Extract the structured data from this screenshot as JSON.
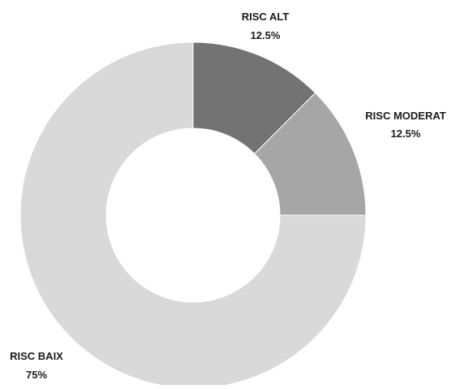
{
  "chart_data": {
    "type": "pie",
    "variant": "donut",
    "start_angle_deg": 0,
    "direction": "clockwise",
    "slices": [
      {
        "label": "RISC ALT",
        "value_label": "12.5%",
        "value": 12.5,
        "color": "#737373"
      },
      {
        "label": "RISC MODERAT",
        "value_label": "12.5%",
        "value": 12.5,
        "color": "#a6a6a6"
      },
      {
        "label": "RISC BAIX",
        "value_label": "75%",
        "value": 75,
        "color": "#d9d9d9"
      }
    ],
    "legend": "none"
  }
}
